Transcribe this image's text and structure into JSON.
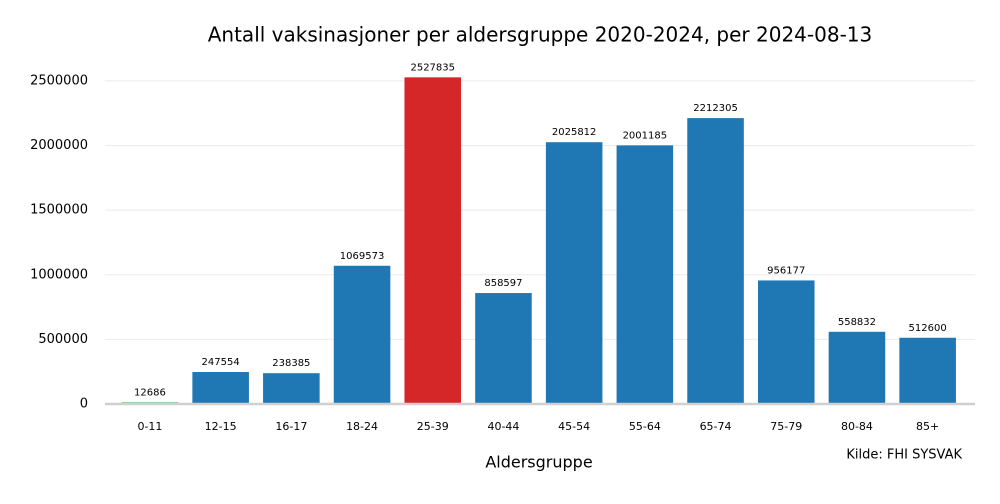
{
  "chart_data": {
    "type": "bar",
    "title": "Antall vaksinasjoner per aldersgruppe 2020-2024, per 2024-08-13",
    "x_label": "Aldersgruppe",
    "source": "Kilde: FHI SYSVAK",
    "categories": [
      "0-11",
      "12-15",
      "16-17",
      "18-24",
      "25-39",
      "40-44",
      "45-54",
      "55-64",
      "65-74",
      "75-79",
      "80-84",
      "85+"
    ],
    "values": [
      12686,
      247554,
      238385,
      1069573,
      2527835,
      858597,
      2025812,
      2001185,
      2212305,
      956177,
      558832,
      512600
    ],
    "colors": [
      "#2ca02c",
      "#1f77b4",
      "#1f77b4",
      "#1f77b4",
      "#d62728",
      "#1f77b4",
      "#1f77b4",
      "#1f77b4",
      "#1f77b4",
      "#1f77b4",
      "#1f77b4",
      "#1f77b4"
    ],
    "ylim": [
      0,
      2600000
    ],
    "yticks": [
      0,
      500000,
      1000000,
      1500000,
      2000000,
      2500000
    ],
    "grid": true
  }
}
